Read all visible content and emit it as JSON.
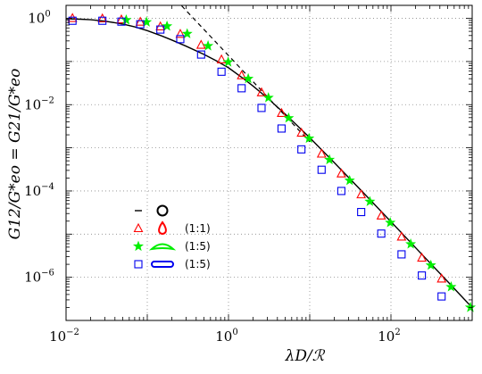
{
  "chart_data": {
    "type": "scatter",
    "xlabel": "λD/ℛ",
    "ylabel": "G12/G*eo = G21/G*eo",
    "x_scale": "log",
    "y_scale": "log",
    "xlim": [
      0.01,
      1000
    ],
    "ylim": [
      1e-07,
      2
    ],
    "x_ticks": [
      {
        "base": "10",
        "exp": "−2",
        "value": 0.01
      },
      {
        "base": "10",
        "exp": "0",
        "value": 1
      },
      {
        "base": "10",
        "exp": "2",
        "value": 100
      }
    ],
    "y_ticks": [
      {
        "base": "10",
        "exp": "0",
        "value": 1
      },
      {
        "base": "10",
        "exp": "−2",
        "value": 0.01
      },
      {
        "base": "10",
        "exp": "−4",
        "value": 0.0001
      },
      {
        "base": "10",
        "exp": "−6",
        "value": 1e-06
      }
    ],
    "grid": true,
    "legend_placement": "lower-left",
    "theory_curve": {
      "style": "solid",
      "color": "#000000",
      "x": [
        0.01,
        0.015,
        0.02,
        0.03,
        0.05,
        0.07,
        0.1,
        0.15,
        0.2,
        0.3,
        0.5,
        0.7,
        1,
        1.5,
        2,
        3,
        5,
        7,
        10,
        20,
        50,
        100,
        200,
        500,
        1000
      ],
      "y": [
        0.9803,
        0.9574,
        0.928,
        0.8616,
        0.7381,
        0.6353,
        0.5205,
        0.3924,
        0.3157,
        0.2272,
        0.146,
        0.1047,
        0.0718,
        0.0412,
        0.0271,
        0.0144,
        0.00603,
        0.00329,
        0.00172,
        0.000456,
        7.63e-05,
        1.94e-05,
        4.9e-06,
        7.93e-07,
        1.99e-07
      ]
    },
    "asymptote": {
      "style": "dashed",
      "color": "#000000",
      "x": [
        0.265,
        10
      ],
      "y": [
        1.95,
        0.00138
      ]
    },
    "series": [
      {
        "marker": "triangle",
        "color": "#ff0000",
        "x": [
          0.012,
          0.028,
          0.048,
          0.082,
          0.145,
          0.255,
          0.46,
          0.82,
          1.45,
          2.55,
          4.5,
          7.9,
          14,
          24.5,
          43,
          76,
          135,
          240,
          420
        ],
        "y": [
          1.0,
          0.98,
          0.93,
          0.82,
          0.64,
          0.43,
          0.24,
          0.11,
          0.047,
          0.019,
          0.0063,
          0.0022,
          0.00072,
          0.00025,
          8.2e-05,
          2.65e-05,
          8.6e-06,
          2.8e-06,
          9.2e-07
        ]
      },
      {
        "marker": "star",
        "color": "#00ee00",
        "x": [
          0.055,
          0.098,
          0.175,
          0.31,
          0.56,
          0.99,
          1.75,
          3.1,
          5.5,
          9.8,
          17.5,
          31,
          55,
          98,
          175,
          310,
          550,
          950
        ],
        "y": [
          0.92,
          0.82,
          0.66,
          0.44,
          0.23,
          0.097,
          0.04,
          0.0145,
          0.0049,
          0.00165,
          0.00053,
          0.000175,
          5.7e-05,
          1.85e-05,
          5.9e-06,
          1.9e-06,
          6e-07,
          2e-07
        ]
      },
      {
        "marker": "square",
        "color": "#0000ee",
        "x": [
          0.012,
          0.028,
          0.048,
          0.082,
          0.145,
          0.255,
          0.46,
          0.82,
          1.45,
          2.55,
          4.5,
          7.9,
          14,
          24.5,
          43,
          76,
          135,
          240,
          420
        ],
        "y": [
          0.88,
          0.88,
          0.84,
          0.73,
          0.55,
          0.33,
          0.145,
          0.058,
          0.024,
          0.0084,
          0.0028,
          0.00092,
          0.00031,
          0.0001,
          3.25e-05,
          1.03e-05,
          3.4e-06,
          1.1e-06,
          3.6e-07
        ]
      }
    ],
    "legend": [
      {
        "marker": "dash",
        "color": "#000000",
        "shape": "circle",
        "label": ""
      },
      {
        "marker": "triangle",
        "color": "#ff0000",
        "shape": "drop",
        "label": "(1:1)"
      },
      {
        "marker": "star",
        "color": "#00ee00",
        "shape": "lens",
        "label": "(1:5)"
      },
      {
        "marker": "square",
        "color": "#0000ee",
        "shape": "capsule",
        "label": "(1:5)"
      }
    ]
  }
}
